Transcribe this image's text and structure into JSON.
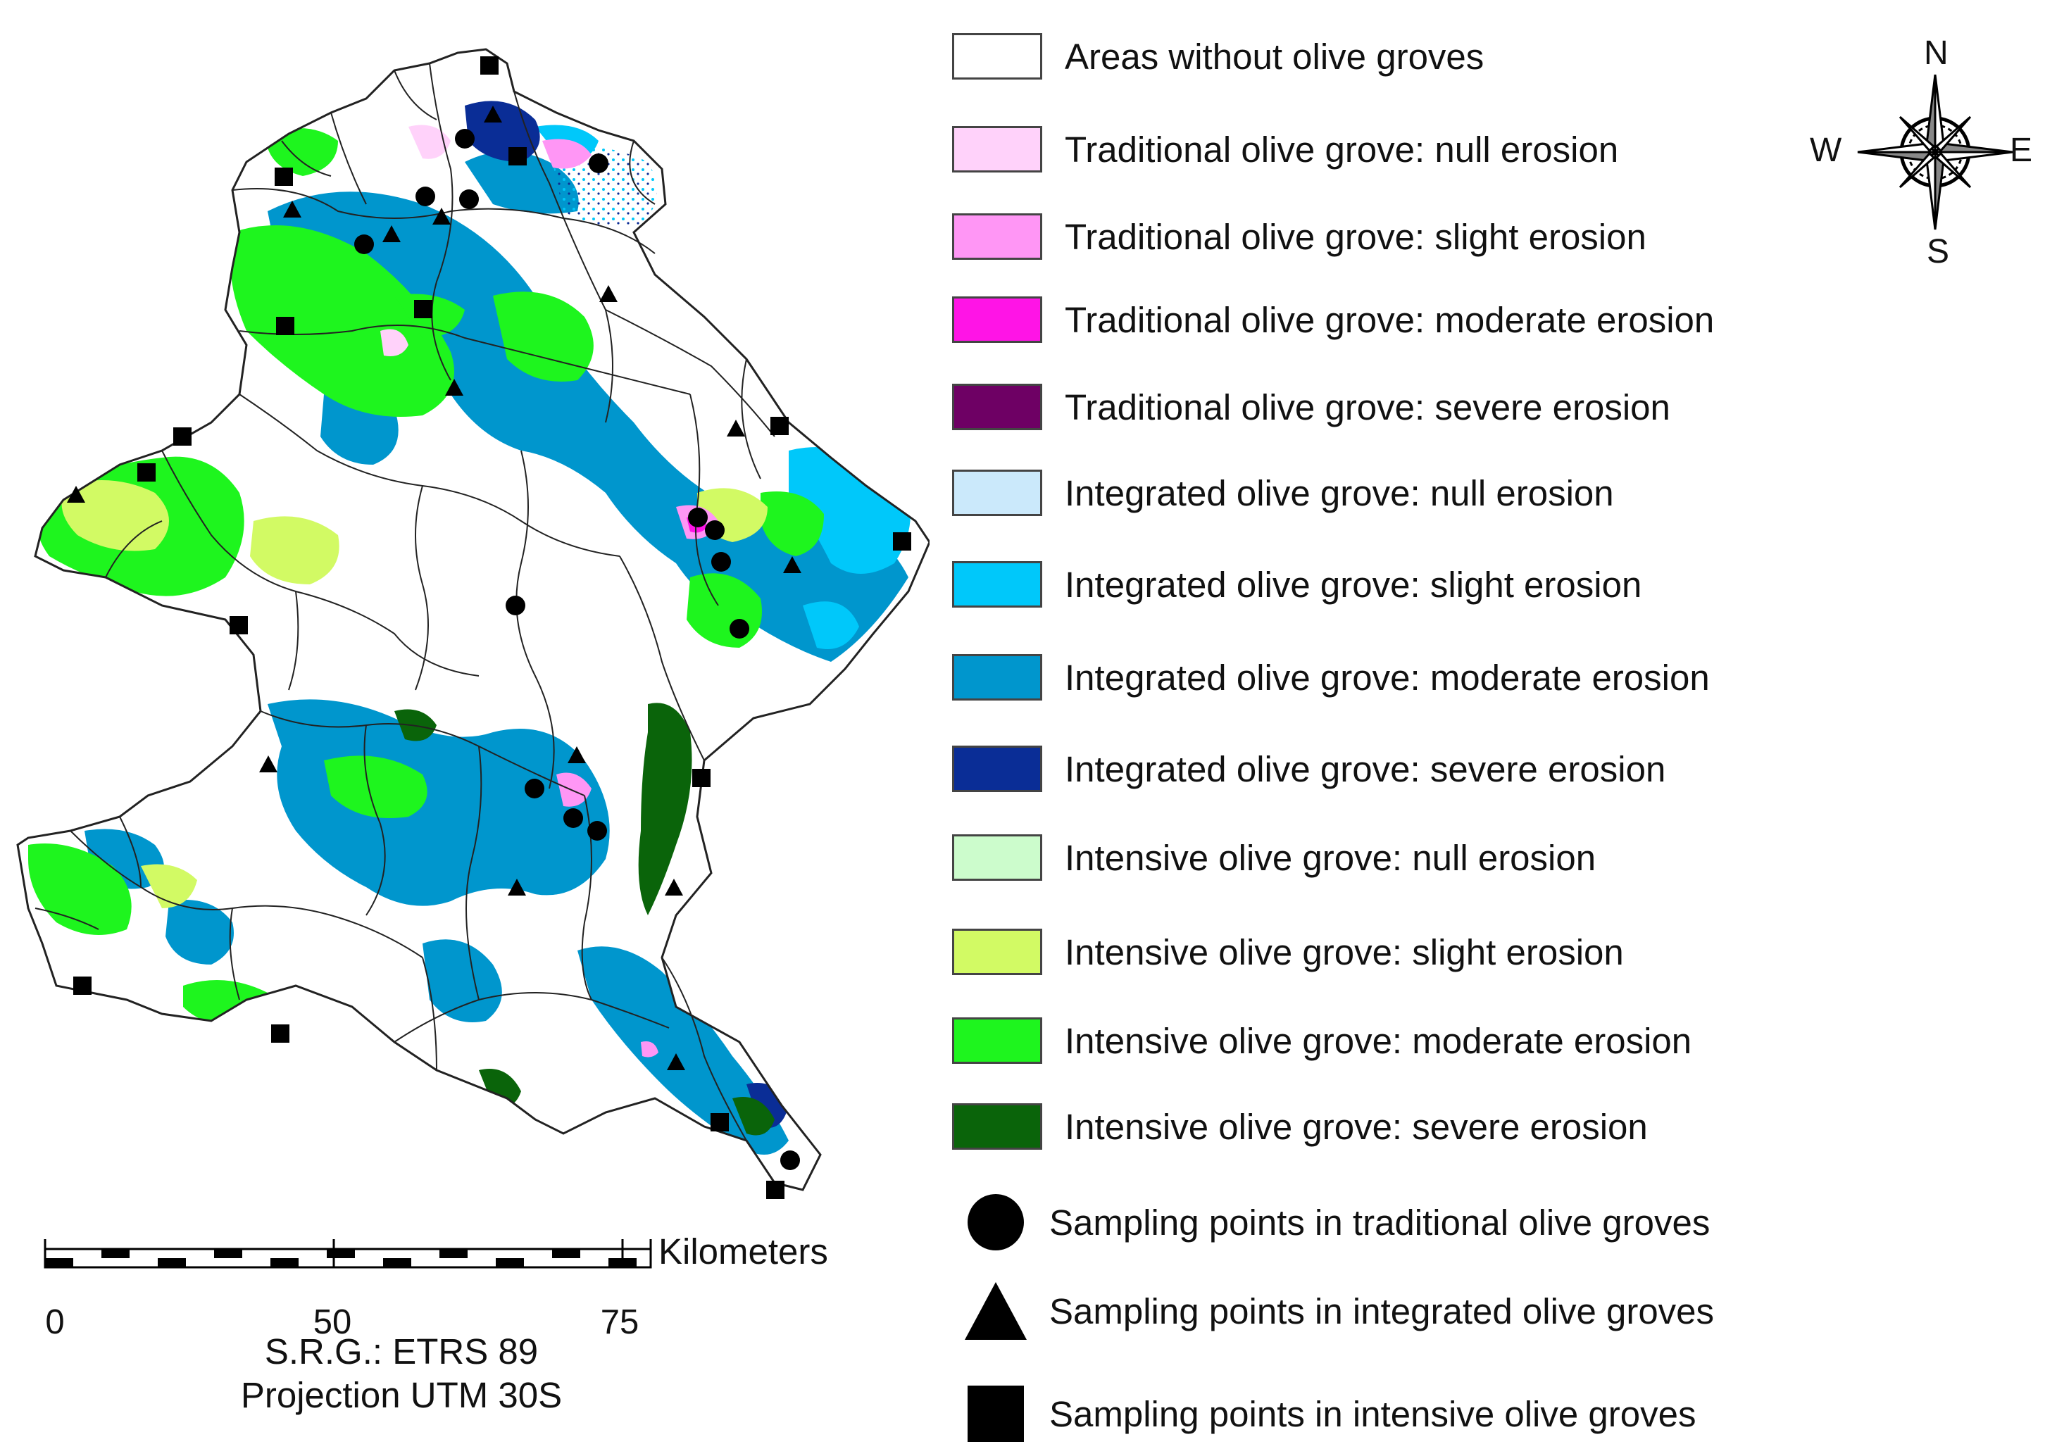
{
  "legend": {
    "items": [
      {
        "label": "Areas without olive groves",
        "color": "#ffffff"
      },
      {
        "label": "Traditional olive grove: null erosion",
        "color": "#ffd2fa"
      },
      {
        "label": "Traditional olive grove: slight erosion",
        "color": "#ff96f5"
      },
      {
        "label": "Traditional olive grove: moderate erosion",
        "color": "#ff14e6"
      },
      {
        "label": "Traditional olive grove: severe erosion",
        "color": "#6e0064"
      },
      {
        "label": "Integrated olive grove: null erosion",
        "color": "#cbe9fb"
      },
      {
        "label": "Integrated olive grove: slight erosion",
        "color": "#00c8fa"
      },
      {
        "label": "Integrated olive grove: moderate erosion",
        "color": "#0096cd"
      },
      {
        "label": "Integrated olive grove: severe erosion",
        "color": "#0a2d96"
      },
      {
        "label": "Intensive olive grove: null erosion",
        "color": "#ccfccc"
      },
      {
        "label": "Intensive olive grove: slight erosion",
        "color": "#d2fa64"
      },
      {
        "label": "Intensive olive grove: moderate erosion",
        "color": "#1ef51e"
      },
      {
        "label": "Intensive olive grove: severe erosion",
        "color": "#0a640a"
      }
    ],
    "symbols": [
      {
        "label": "Sampling points in traditional olive groves",
        "shape": "circle"
      },
      {
        "label": "Sampling points in integrated olive groves",
        "shape": "triangle"
      },
      {
        "label": "Sampling points in intensive olive groves",
        "shape": "square"
      }
    ]
  },
  "compass": {
    "n": "N",
    "s": "S",
    "e": "E",
    "w": "W"
  },
  "scale": {
    "unit": "Kilometers",
    "ticks": [
      "0",
      "50",
      "75"
    ]
  },
  "reference": {
    "srs": "S.R.G.: ETRS 89",
    "projection": "Projection UTM 30S"
  }
}
